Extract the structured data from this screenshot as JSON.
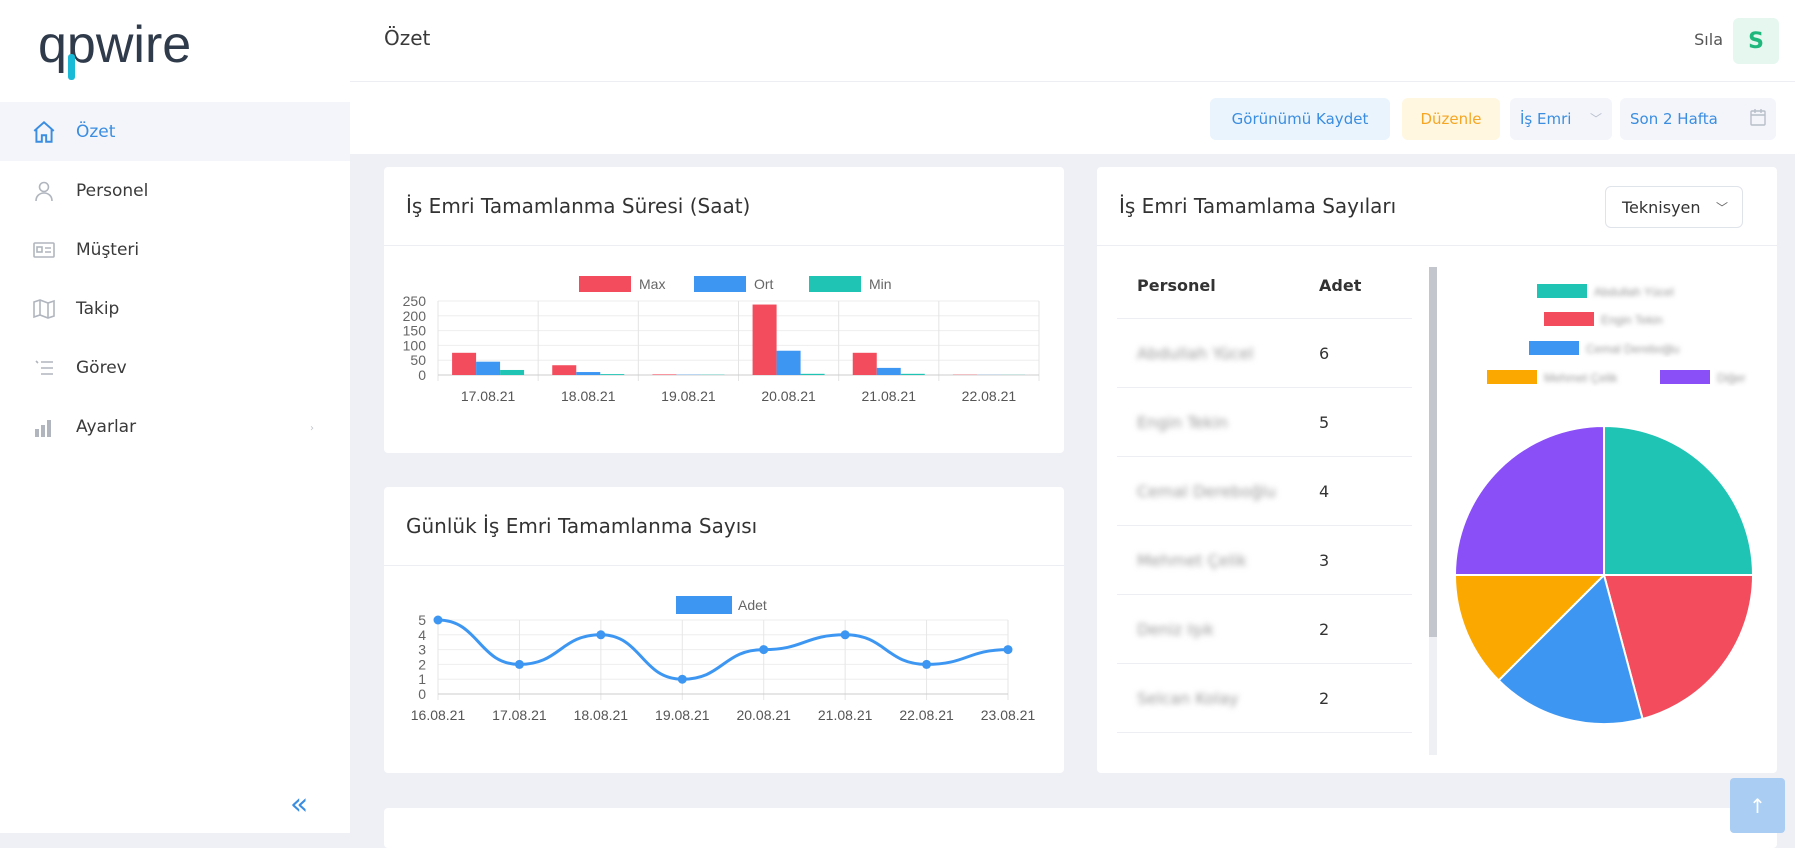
{
  "app": {
    "logo_text": "qpwire"
  },
  "sidebar": {
    "items": [
      {
        "label": "Özet",
        "icon": "home-icon",
        "active": true
      },
      {
        "label": "Personel",
        "icon": "user-icon"
      },
      {
        "label": "Müşteri",
        "icon": "id-card-icon"
      },
      {
        "label": "Takip",
        "icon": "map-icon"
      },
      {
        "label": "Görev",
        "icon": "list-icon"
      },
      {
        "label": "Ayarlar",
        "icon": "bar-chart-icon"
      }
    ],
    "collapse_label": "«"
  },
  "header": {
    "title": "Özet",
    "user_name": "Sıla",
    "avatar_initial": "S"
  },
  "toolbar": {
    "save_view_label": "Görünümü Kaydet",
    "edit_label": "Düzenle",
    "type_select_value": "İş Emri",
    "range_select_value": "Son 2 Hafta"
  },
  "cards": {
    "duration": {
      "title": "İş Emri Tamamlanma Süresi (Saat)"
    },
    "daily": {
      "title": "Günlük İş Emri Tamamlanma Sayısı"
    },
    "counts": {
      "title": "İş Emri Tamamlama Sayıları",
      "group_select_value": "Teknisyen",
      "table_headers": {
        "name": "Personel",
        "count": "Adet"
      },
      "rows": [
        {
          "name": "Abdullah Yücel",
          "count": "6"
        },
        {
          "name": "Engin Tekin",
          "count": "5"
        },
        {
          "name": "Cemal Dereboğlu",
          "count": "4"
        },
        {
          "name": "Mehmet Çelik",
          "count": "3"
        },
        {
          "name": "Deniz Işık",
          "count": "2"
        },
        {
          "name": "Selcan Kolay",
          "count": "2"
        }
      ]
    }
  },
  "colors": {
    "accent": "#3a8de0",
    "red": "#f24c5d",
    "blue": "#3d97f2",
    "teal": "#1fc4b4",
    "orange": "#fba800",
    "purple": "#8a4ff7"
  },
  "chart_data": [
    {
      "type": "bar",
      "categories": [
        "17.08.21",
        "18.08.21",
        "19.08.21",
        "20.08.21",
        "21.08.21",
        "22.08.21"
      ],
      "series": [
        {
          "name": "Max",
          "values": [
            75,
            33,
            2,
            238,
            75,
            1
          ]
        },
        {
          "name": "Ort",
          "values": [
            45,
            10,
            1,
            82,
            24,
            0.5
          ]
        },
        {
          "name": "Min",
          "values": [
            17,
            3,
            1,
            4,
            4,
            0.5
          ]
        }
      ],
      "yticks": [
        0,
        50,
        100,
        150,
        200,
        250
      ],
      "ylim": [
        0,
        250
      ],
      "legend": "top"
    },
    {
      "type": "line",
      "x": [
        "16.08.21",
        "17.08.21",
        "18.08.21",
        "19.08.21",
        "20.08.21",
        "21.08.21",
        "22.08.21",
        "23.08.21"
      ],
      "series": [
        {
          "name": "Adet",
          "values": [
            5,
            2,
            4,
            1,
            3,
            4,
            2,
            3
          ]
        }
      ],
      "yticks": [
        0,
        1,
        2,
        3,
        4,
        5
      ],
      "ylim": [
        0,
        5
      ],
      "legend": "top"
    },
    {
      "type": "pie",
      "labels": [
        "Abdullah Yücel",
        "Engin Tekin",
        "Cemal Dereboğlu",
        "Mehmet Çelik",
        "Diğer"
      ],
      "values": [
        6,
        5,
        4,
        3,
        6
      ],
      "legend": "top"
    }
  ]
}
